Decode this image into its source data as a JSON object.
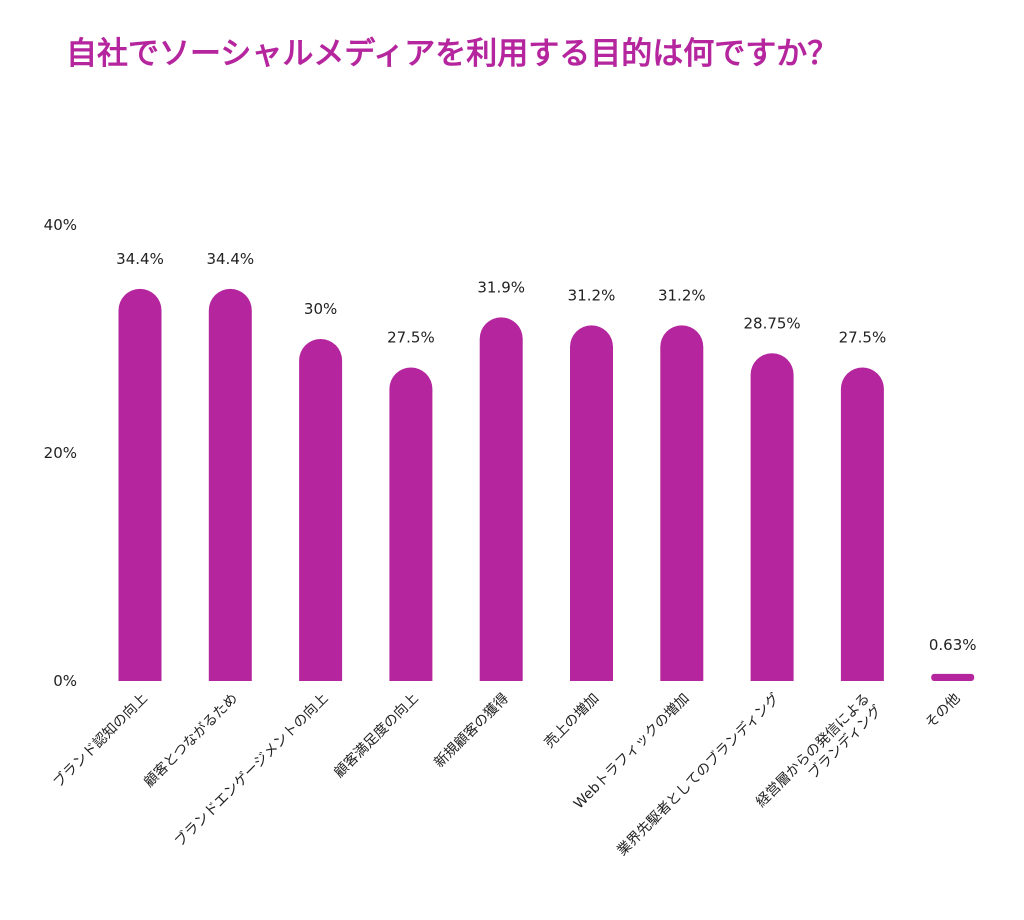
{
  "chart_data": {
    "type": "bar",
    "title": "自社でソーシャルメディアを利用する目的は何ですか？",
    "categories": [
      [
        "ブランド認知の向上"
      ],
      [
        "顧客とつながるため"
      ],
      [
        "ブランドエンゲージメントの向上"
      ],
      [
        "顧客満足度の向上"
      ],
      [
        "新規顧客の獲得"
      ],
      [
        "売上の増加"
      ],
      [
        "Webトラフィックの増加"
      ],
      [
        "業界先駆者としてのブランディング"
      ],
      [
        "経営層からの発信による",
        "ブランディング"
      ],
      [
        "その他"
      ]
    ],
    "values": [
      34.4,
      34.4,
      30,
      27.5,
      31.9,
      31.2,
      31.2,
      28.75,
      27.5,
      0.63
    ],
    "value_labels": [
      "34.4%",
      "34.4%",
      "30%",
      "27.5%",
      "31.9%",
      "31.2%",
      "31.2%",
      "28.75%",
      "27.5%",
      "0.63%"
    ],
    "ylim": [
      0,
      40
    ],
    "yticks": [
      0,
      20,
      40
    ],
    "ytick_labels": [
      "0%",
      "20%",
      "40%"
    ],
    "xlabel": "",
    "ylabel": "",
    "grid": false,
    "legend": "none",
    "colors": {
      "bar": "#b5269e",
      "title": "#b5269e",
      "text": "#222222"
    }
  }
}
